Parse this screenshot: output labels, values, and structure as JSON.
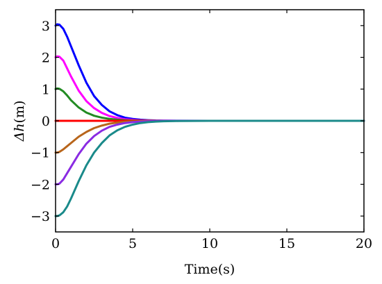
{
  "chart_data": {
    "type": "line",
    "title": "",
    "xlabel": "Time(s)",
    "ylabel": {
      "delta": "Δh",
      "unit": "(m)"
    },
    "xlim": [
      0,
      20
    ],
    "ylim": [
      -3.5,
      3.5
    ],
    "xticks": [
      0,
      5,
      10,
      15,
      20
    ],
    "xtick_labels": [
      "0",
      "5",
      "10",
      "15",
      "20"
    ],
    "yticks": [
      -3,
      -2,
      -1,
      0,
      1,
      2,
      3
    ],
    "ytick_labels": [
      "−3",
      "−2",
      "−1",
      "0",
      "1",
      "2",
      "3"
    ],
    "grid": false,
    "legend": "none",
    "x": [
      0,
      0.1,
      0.25,
      0.5,
      0.75,
      1,
      1.5,
      2,
      2.5,
      3,
      3.5,
      4,
      4.5,
      5,
      5.5,
      6,
      6.5,
      7,
      8,
      10,
      12,
      15,
      20
    ],
    "series": [
      {
        "color": "#0000ff",
        "values": [
          3.0,
          3.04,
          3.03,
          2.9,
          2.65,
          2.35,
          1.75,
          1.2,
          0.78,
          0.5,
          0.3,
          0.18,
          0.1,
          0.06,
          0.035,
          0.02,
          0.01,
          0.006,
          0.002,
          0,
          0,
          0,
          0
        ]
      },
      {
        "color": "#ff00ff",
        "values": [
          2.0,
          2.03,
          2.02,
          1.9,
          1.65,
          1.4,
          0.95,
          0.62,
          0.4,
          0.25,
          0.15,
          0.09,
          0.05,
          0.03,
          0.015,
          0.008,
          0.004,
          0.002,
          0.001,
          0,
          0,
          0,
          0
        ]
      },
      {
        "color": "#228b22",
        "values": [
          1.0,
          1.02,
          1.01,
          0.93,
          0.8,
          0.65,
          0.42,
          0.26,
          0.16,
          0.1,
          0.06,
          0.035,
          0.02,
          0.01,
          0.005,
          0.003,
          0.001,
          0,
          0,
          0,
          0,
          0,
          0
        ]
      },
      {
        "color": "#ff0000",
        "values": [
          0,
          0,
          0,
          0,
          0,
          0,
          0,
          0,
          0,
          0,
          0,
          0,
          0,
          0,
          0,
          0,
          0,
          0,
          0,
          0,
          0,
          0,
          0
        ]
      },
      {
        "color": "#b8651b",
        "values": [
          -1.0,
          -1.0,
          -0.98,
          -0.9,
          -0.8,
          -0.7,
          -0.5,
          -0.35,
          -0.23,
          -0.15,
          -0.09,
          -0.055,
          -0.03,
          -0.018,
          -0.01,
          -0.005,
          -0.002,
          -0.001,
          0,
          0,
          0,
          0,
          0
        ]
      },
      {
        "color": "#8a2be2",
        "values": [
          -2.0,
          -2.0,
          -1.98,
          -1.85,
          -1.65,
          -1.45,
          -1.05,
          -0.72,
          -0.48,
          -0.31,
          -0.19,
          -0.12,
          -0.07,
          -0.04,
          -0.025,
          -0.013,
          -0.007,
          -0.003,
          -0.001,
          0,
          0,
          0,
          0
        ]
      },
      {
        "color": "#1a8a8a",
        "values": [
          -3.0,
          -3.0,
          -2.98,
          -2.88,
          -2.7,
          -2.45,
          -1.9,
          -1.4,
          -1.0,
          -0.7,
          -0.46,
          -0.3,
          -0.19,
          -0.12,
          -0.07,
          -0.04,
          -0.024,
          -0.014,
          -0.005,
          0,
          0,
          0,
          0
        ]
      }
    ]
  }
}
